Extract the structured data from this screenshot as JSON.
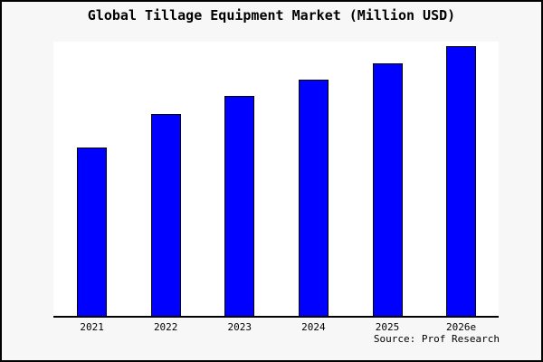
{
  "chart_data": {
    "type": "bar",
    "title": "Global Tillage Equipment Market (Million USD)",
    "categories": [
      "2021",
      "2022",
      "2023",
      "2024",
      "2025",
      "2026e"
    ],
    "values": [
      188,
      225,
      245,
      263,
      281,
      300
    ],
    "xlabel": "",
    "ylabel": "",
    "y_axis_visible": false,
    "gridlines": false,
    "legend": false,
    "bar_color": "#0000ff",
    "bar_border_color": "#000000",
    "plot_background": "#ffffff",
    "outer_background": "#f7f7f7",
    "frame_border_color": "#000000"
  },
  "footer": {
    "source_label": "Source: Prof Research"
  }
}
